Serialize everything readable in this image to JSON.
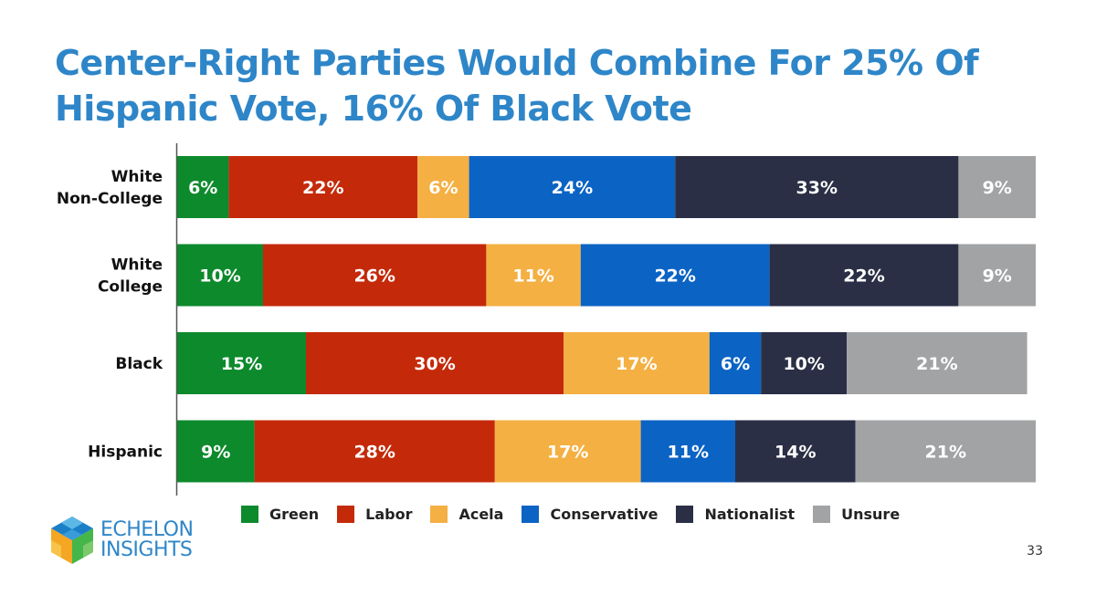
{
  "slide": {
    "title_line1": "Center-Right Parties Would Combine For 25% Of",
    "title_line2": "Hispanic Vote, 16% Of Black Vote",
    "page_number": "33"
  },
  "logo": {
    "line1": "ECHELON",
    "line2": "INSIGHTS"
  },
  "colors": {
    "Green": "#0d8a2c",
    "Labor": "#c42a0a",
    "Acela": "#f4b043",
    "Conservative": "#0b63c4",
    "Nationalist": "#2a2f45",
    "Unsure": "#a2a3a5"
  },
  "chart_data": {
    "type": "bar",
    "orientation": "horizontal-stacked",
    "title": "Center-Right Parties Would Combine For 25% Of Hispanic Vote, 16% Of Black Vote",
    "categories": [
      [
        "White",
        "Non-College"
      ],
      [
        "White",
        "College"
      ],
      [
        "Black"
      ],
      [
        "Hispanic"
      ]
    ],
    "series": [
      {
        "name": "Green",
        "values": [
          6,
          10,
          15,
          9
        ]
      },
      {
        "name": "Labor",
        "values": [
          22,
          26,
          30,
          28
        ]
      },
      {
        "name": "Acela",
        "values": [
          6,
          11,
          17,
          17
        ]
      },
      {
        "name": "Conservative",
        "values": [
          24,
          22,
          6,
          11
        ]
      },
      {
        "name": "Nationalist",
        "values": [
          33,
          22,
          10,
          14
        ]
      },
      {
        "name": "Unsure",
        "values": [
          9,
          9,
          21,
          21
        ]
      }
    ],
    "value_suffix": "%",
    "xlim": [
      0,
      100
    ],
    "legend_position": "bottom"
  }
}
